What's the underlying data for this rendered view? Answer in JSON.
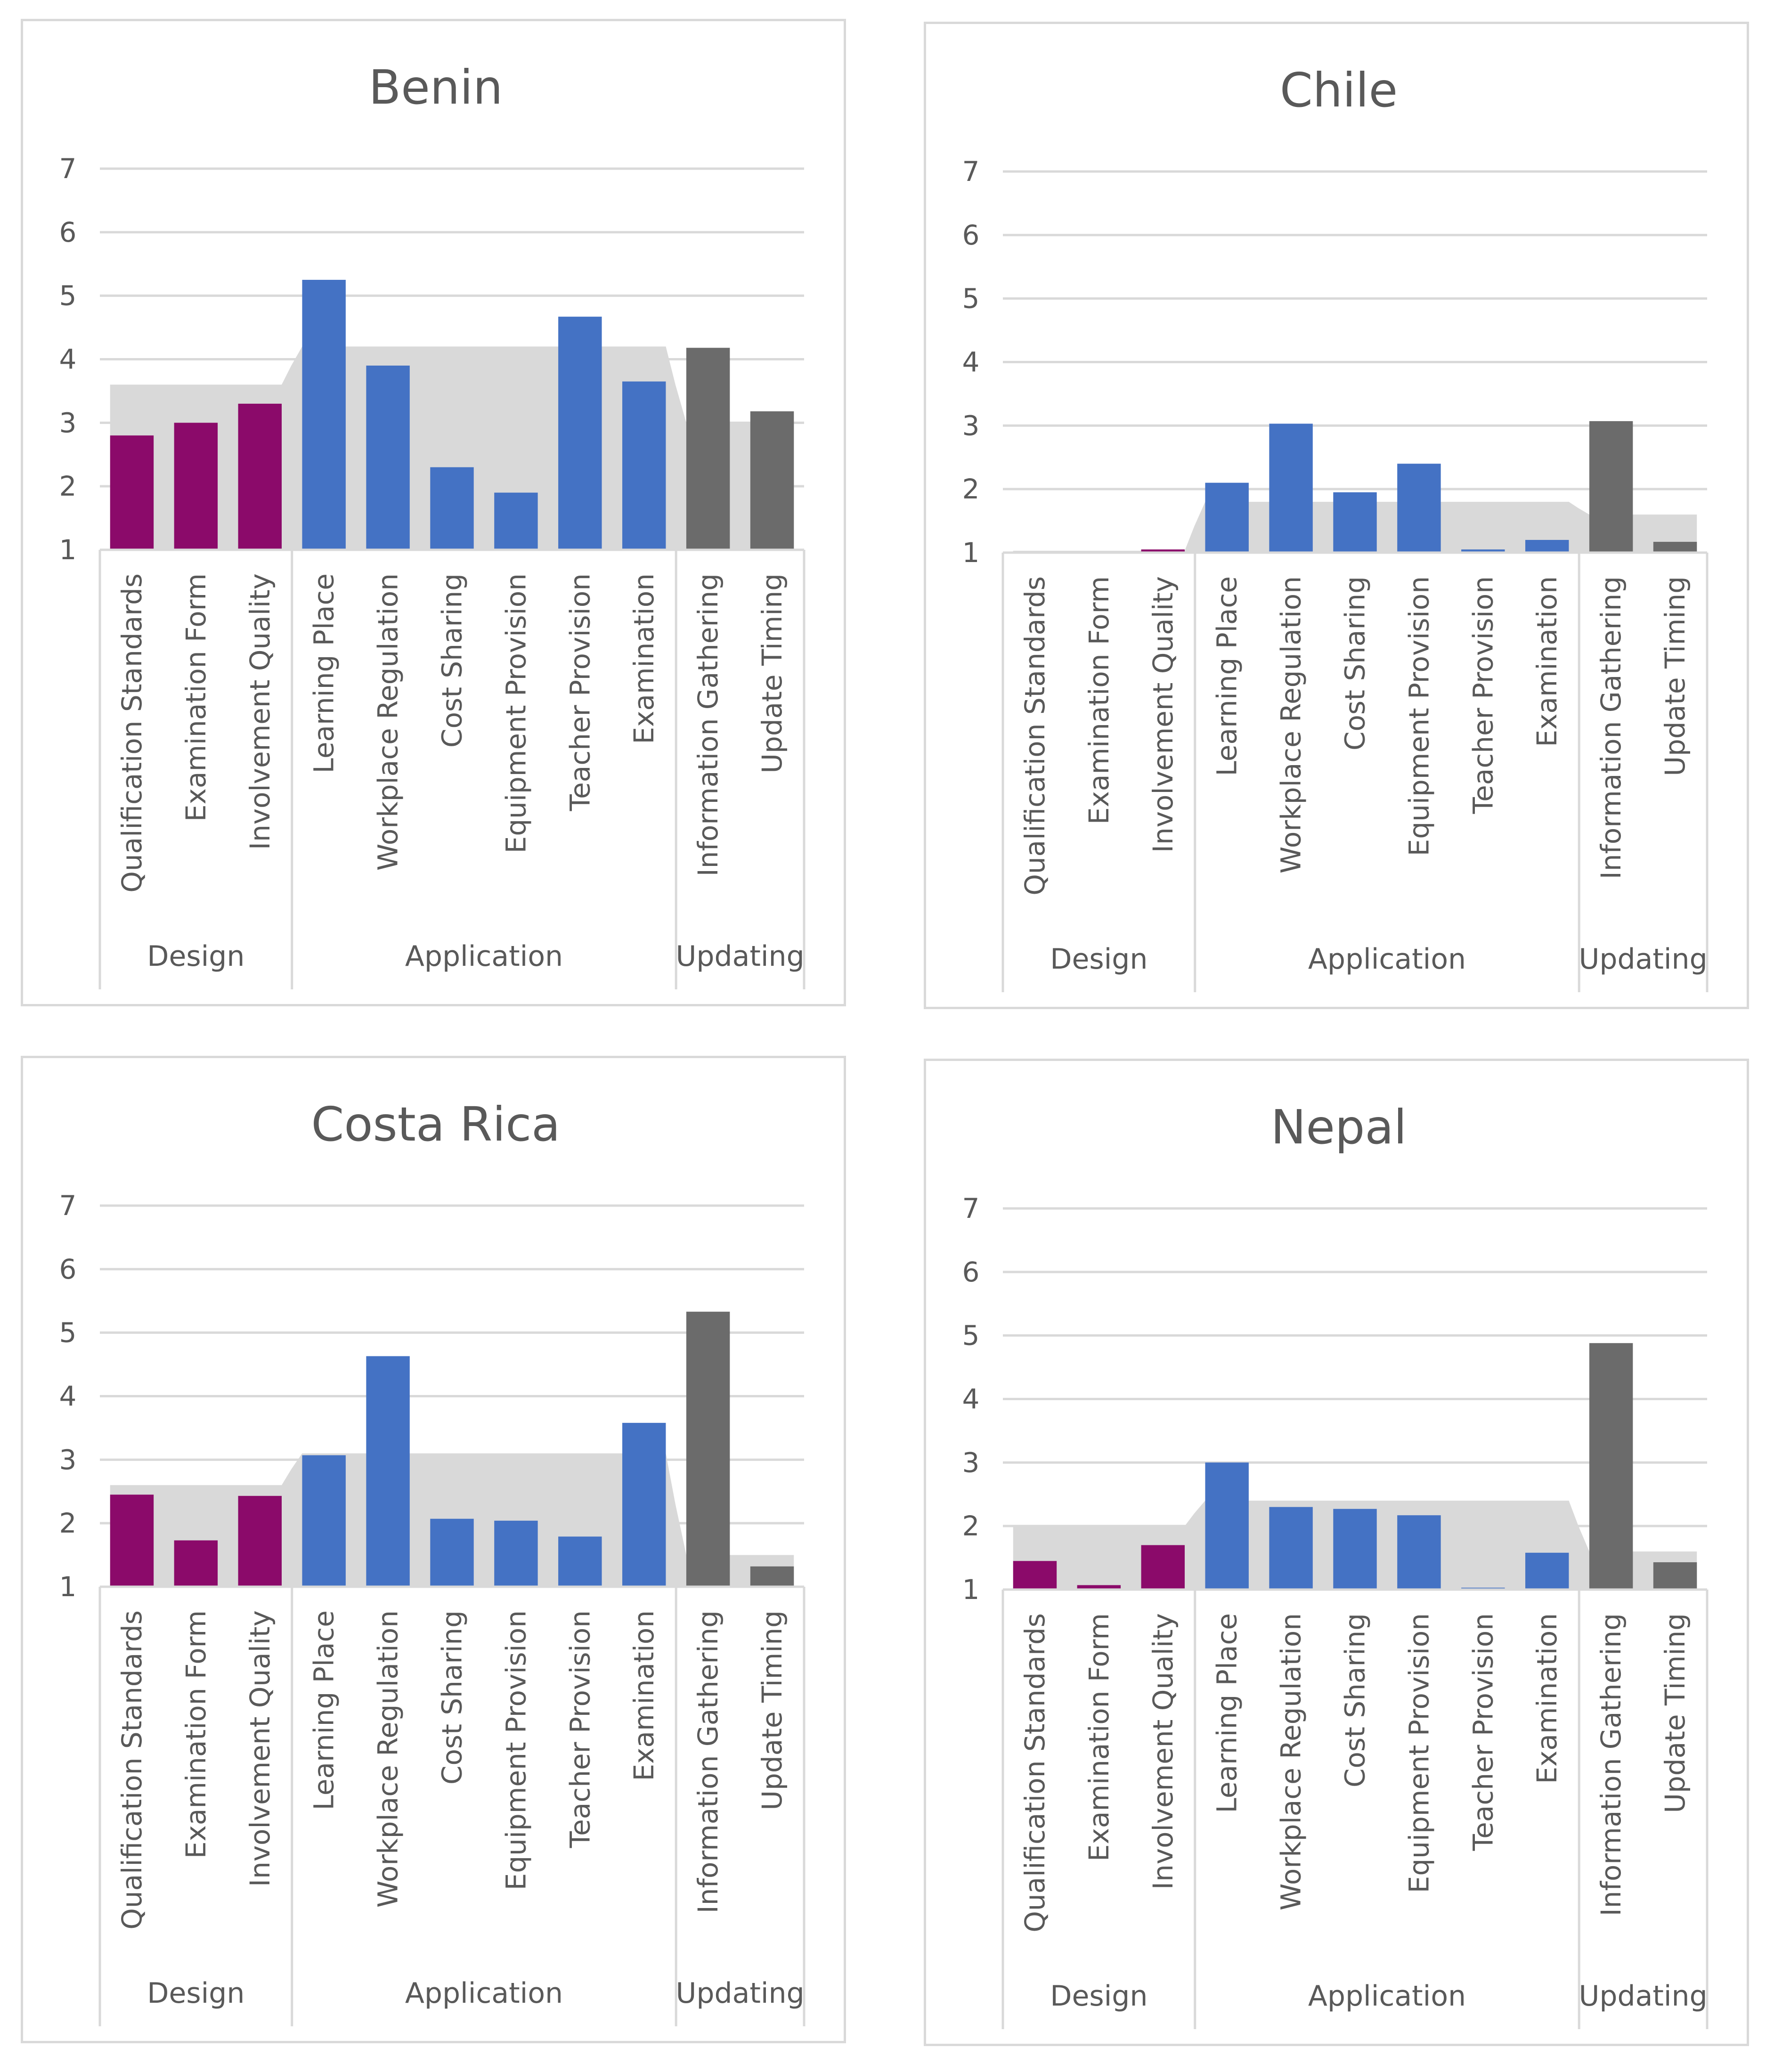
{
  "chart_data": [
    {
      "type": "bar",
      "title": "Benin",
      "ylim": [
        1,
        7
      ],
      "yticks": [
        1,
        2,
        3,
        4,
        5,
        6,
        7
      ],
      "categories": [
        "Qualification Standards",
        "Examination Form",
        "Involvement Quality",
        "Learning Place",
        "Workplace Regulation",
        "Cost Sharing",
        "Equipment Provision",
        "Teacher Provision",
        "Examination",
        "Information Gathering",
        "Update Timing"
      ],
      "groups": [
        {
          "name": "Design",
          "count": 3
        },
        {
          "name": "Application",
          "count": 6
        },
        {
          "name": "Updating",
          "count": 2
        }
      ],
      "values": [
        2.8,
        3.0,
        3.3,
        5.25,
        3.9,
        2.3,
        1.9,
        4.67,
        3.65,
        4.18,
        3.18
      ],
      "group_reference": [
        3.6,
        4.2,
        3.0
      ]
    },
    {
      "type": "bar",
      "title": "Chile",
      "ylim": [
        1,
        7
      ],
      "yticks": [
        1,
        2,
        3,
        4,
        5,
        6,
        7
      ],
      "categories": [
        "Qualification Standards",
        "Examination Form",
        "Involvement Quality",
        "Learning Place",
        "Workplace Regulation",
        "Cost Sharing",
        "Equipment Provision",
        "Teacher Provision",
        "Examination",
        "Information Gathering",
        "Update Timing"
      ],
      "groups": [
        {
          "name": "Design",
          "count": 3
        },
        {
          "name": "Application",
          "count": 6
        },
        {
          "name": "Updating",
          "count": 2
        }
      ],
      "values": [
        1.0,
        1.0,
        1.05,
        2.1,
        3.03,
        1.95,
        2.4,
        1.05,
        1.2,
        3.07,
        1.17
      ],
      "group_reference": [
        1.03,
        1.8,
        1.6
      ]
    },
    {
      "type": "bar",
      "title": "Costa Rica",
      "ylim": [
        1,
        7
      ],
      "yticks": [
        1,
        2,
        3,
        4,
        5,
        6,
        7
      ],
      "categories": [
        "Qualification Standards",
        "Examination Form",
        "Involvement Quality",
        "Learning Place",
        "Workplace Regulation",
        "Cost Sharing",
        "Equipment Provision",
        "Teacher Provision",
        "Examination",
        "Information Gathering",
        "Update Timing"
      ],
      "groups": [
        {
          "name": "Design",
          "count": 3
        },
        {
          "name": "Application",
          "count": 6
        },
        {
          "name": "Updating",
          "count": 2
        }
      ],
      "values": [
        2.45,
        1.73,
        2.43,
        3.07,
        4.63,
        2.07,
        2.04,
        1.79,
        3.58,
        5.33,
        1.32
      ],
      "group_reference": [
        2.6,
        3.1,
        1.5
      ]
    },
    {
      "type": "bar",
      "title": "Nepal",
      "ylim": [
        1,
        7
      ],
      "yticks": [
        1,
        2,
        3,
        4,
        5,
        6,
        7
      ],
      "categories": [
        "Qualification Standards",
        "Examination Form",
        "Involvement Quality",
        "Learning Place",
        "Workplace Regulation",
        "Cost Sharing",
        "Equipment Provision",
        "Teacher Provision",
        "Examination",
        "Information Gathering",
        "Update Timing"
      ],
      "groups": [
        {
          "name": "Design",
          "count": 3
        },
        {
          "name": "Application",
          "count": 6
        },
        {
          "name": "Updating",
          "count": 2
        }
      ],
      "values": [
        1.45,
        1.07,
        1.7,
        3.0,
        2.3,
        2.27,
        2.17,
        1.03,
        1.58,
        4.88,
        1.43
      ],
      "group_reference": [
        2.0,
        2.4,
        1.6
      ]
    }
  ],
  "colors": {
    "Design": "#8b0a6a",
    "Application": "#4472c4",
    "Updating": "#6b6b6b",
    "band": "#d9d9d9",
    "grid": "#d9d9d9",
    "text": "#595959"
  }
}
